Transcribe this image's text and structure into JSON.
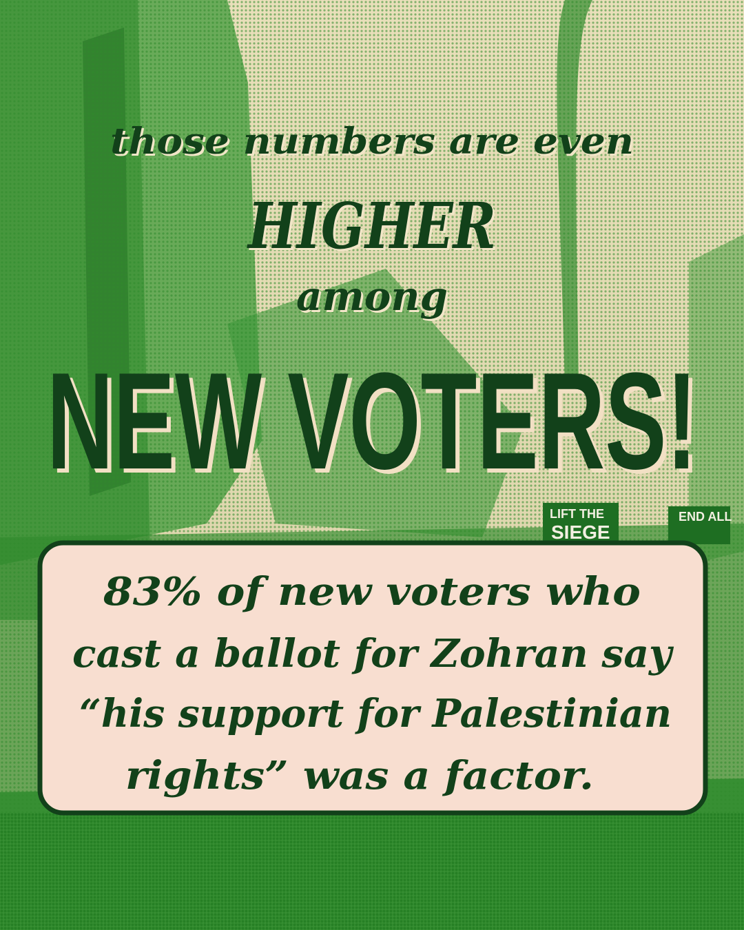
{
  "headline": {
    "line1": "those numbers are even",
    "line2": "HIGHER",
    "line3": "among",
    "line4": "NEW VOTERS!"
  },
  "callout": {
    "lines": [
      "83% of new voters who",
      "cast a ballot for Zohran say",
      "“his support for Palestinian",
      "rights” was a factor."
    ]
  },
  "photo_signs": [
    "LIFT THE",
    "SIEGE",
    "END ALL"
  ]
}
